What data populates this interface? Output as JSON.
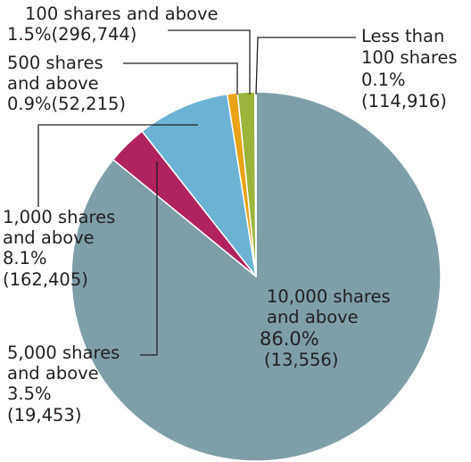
{
  "chart_data": {
    "type": "pie",
    "title": "",
    "slices": [
      {
        "name": "10,000 shares and above",
        "lines": [
          "10,000 shares",
          "and above"
        ],
        "value": 86.0,
        "percent_label": "86.0%",
        "count_label": "(13,556)",
        "color": "#7f9ea8"
      },
      {
        "name": "5,000 shares and above",
        "lines": [
          "5,000 shares",
          "and above"
        ],
        "value": 3.5,
        "percent_label": "3.5%",
        "count_label": "(19,453)",
        "color": "#b0235e"
      },
      {
        "name": "1,000 shares and above",
        "lines": [
          "1,000 shares",
          "and above"
        ],
        "value": 8.1,
        "percent_label": "8.1%",
        "count_label": "(162,405)",
        "color": "#6bb2d5"
      },
      {
        "name": "500 shares and above",
        "lines": [
          "500 shares",
          "and above"
        ],
        "value": 0.9,
        "percent_label": "0.9%",
        "count_label": "(52,215)",
        "color": "#e8a317"
      },
      {
        "name": "100 shares and above",
        "lines": [
          "100 shares and above"
        ],
        "value": 1.5,
        "percent_label": "1.5%",
        "count_label": "(296,744)",
        "color": "#9bb53c"
      },
      {
        "name": "Less than 100 shares",
        "lines": [
          "Less than",
          "100 shares"
        ],
        "value": 0.1,
        "percent_label": "0.1%",
        "count_label": "(114,916)",
        "color": "#c9d66b"
      }
    ]
  }
}
